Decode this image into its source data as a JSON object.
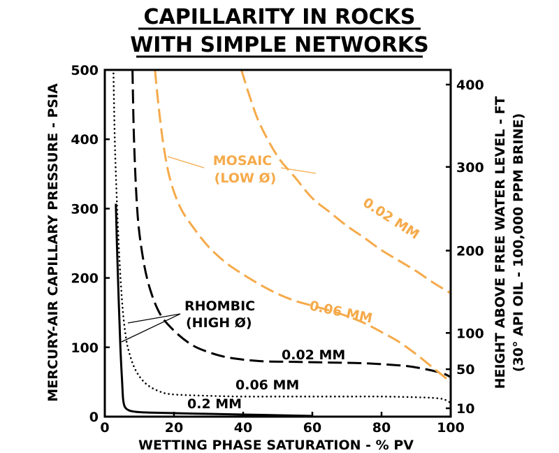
{
  "chart_data": {
    "type": "line",
    "title_lines": [
      "CAPILLARITY IN ROCKS",
      "WITH SIMPLE NETWORKS"
    ],
    "xlabel": "WETTING PHASE SATURATION - % PV",
    "ylabel": "MERCURY-AIR CAPILLARY PRESSURE - PSIA",
    "y2label_lines": [
      "HEIGHT ABOVE FREE WATER LEVEL - FT",
      "(30° API OIL - 100,000 PPM BRINE)"
    ],
    "xlim": [
      0,
      100
    ],
    "ylim": [
      0,
      500
    ],
    "x_ticks": [
      "0",
      "20",
      "40",
      "60",
      "80",
      "100"
    ],
    "y_ticks": [
      "0",
      "100",
      "200",
      "300",
      "400",
      "500"
    ],
    "y2_ticks": [
      {
        "label": "10",
        "value": 6
      },
      {
        "label": "50",
        "value": 34
      },
      {
        "label": "100",
        "value": 60
      },
      {
        "label": "200",
        "value": 119
      },
      {
        "label": "300",
        "value": 179
      },
      {
        "label": "400",
        "value": 238
      }
    ],
    "colors": {
      "rhombic": "#000000",
      "mosaic": "#f5aa4a"
    },
    "series": [
      {
        "name": "0.2 MM",
        "group": "rhombic",
        "style": "solid",
        "x": [
          3.2,
          3.5,
          4,
          4.5,
          5,
          5.3,
          5.8,
          7,
          9,
          12,
          20,
          30,
          40,
          50,
          60
        ],
        "y": [
          307,
          250,
          170,
          100,
          50,
          25,
          14,
          9,
          7,
          6,
          5,
          4,
          3,
          2,
          1
        ]
      },
      {
        "name": "0.06 MM",
        "group": "rhombic",
        "style": "dotted",
        "x": [
          2.5,
          3,
          4,
          5,
          6,
          7,
          9,
          12,
          16,
          20,
          30,
          40,
          50,
          60,
          70,
          80,
          90,
          95,
          98,
          100
        ],
        "y": [
          495,
          380,
          250,
          165,
          118,
          93,
          66,
          47,
          36,
          32,
          30,
          29,
          29,
          29,
          29,
          29,
          28,
          27,
          25,
          20
        ]
      },
      {
        "name": "0.02 MM",
        "group": "rhombic",
        "style": "dashed",
        "x": [
          8,
          8.5,
          9.5,
          11,
          13,
          16,
          20,
          25,
          30,
          36,
          45,
          55,
          65,
          75,
          85,
          90,
          95,
          98,
          100
        ],
        "y": [
          500,
          390,
          290,
          230,
          185,
          148,
          124,
          104,
          93,
          85,
          80,
          79,
          78,
          77,
          74,
          71,
          66,
          62,
          57
        ]
      },
      {
        "name": "0.06 MM",
        "group": "mosaic",
        "style": "dashed",
        "x": [
          14.5,
          15.5,
          17,
          19,
          22,
          26,
          30,
          35,
          40,
          45,
          50,
          55,
          60,
          65,
          70,
          75,
          80,
          85,
          90,
          95,
          100
        ],
        "y": [
          500,
          450,
          390,
          340,
          300,
          270,
          245,
          222,
          205,
          190,
          177,
          167,
          160,
          153,
          145,
          135,
          122,
          108,
          90,
          70,
          50
        ]
      },
      {
        "name": "0.02 MM",
        "group": "mosaic",
        "style": "dashed",
        "x": [
          39.5,
          42,
          45,
          50,
          55,
          60,
          65,
          70,
          75,
          80,
          85,
          90,
          95,
          100
        ],
        "y": [
          500,
          460,
          420,
          375,
          345,
          315,
          295,
          275,
          258,
          240,
          225,
          210,
          193,
          178
        ]
      }
    ],
    "annotations": {
      "rhombic_lines": [
        "RHOMBIC",
        "(HIGH Ø)"
      ],
      "mosaic_lines": [
        "MOSAIC",
        "(LOW Ø)"
      ],
      "rhombic_002": "0.02 MM",
      "rhombic_006": "0.06 MM",
      "rhombic_02": "0.2 MM",
      "mosaic_006": "0.06 MM",
      "mosaic_002": "0.02 MM"
    }
  }
}
